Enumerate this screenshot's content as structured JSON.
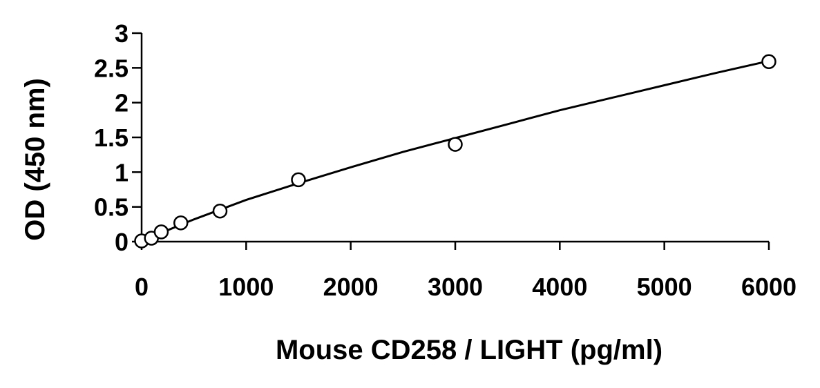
{
  "chart_data": {
    "type": "scatter",
    "xlabel": "Mouse CD258 / LIGHT (pg/ml)",
    "ylabel": "OD (450 nm)",
    "xlim": [
      0,
      6000
    ],
    "ylim": [
      0,
      3
    ],
    "x_ticks": [
      0,
      1000,
      2000,
      3000,
      4000,
      5000,
      6000
    ],
    "y_ticks": [
      0,
      0.5,
      1,
      1.5,
      2,
      2.5,
      3
    ],
    "x_tick_labels": [
      "0",
      "1000",
      "2000",
      "3000",
      "4000",
      "5000",
      "6000"
    ],
    "y_tick_labels": [
      "0",
      "0.5",
      "1",
      "1.5",
      "2",
      "2.5",
      "3"
    ],
    "grid": false,
    "legend": "none",
    "series": [
      {
        "marker": "open-circle",
        "x": [
          0,
          94,
          188,
          375,
          750,
          1500,
          3000,
          6000
        ],
        "y": [
          0.01,
          0.05,
          0.14,
          0.27,
          0.44,
          0.89,
          1.4,
          2.59
        ]
      }
    ],
    "fit_curve": {
      "x": [
        0,
        500,
        1000,
        1500,
        2000,
        2500,
        3000,
        3500,
        4000,
        4500,
        5000,
        5500,
        6000
      ],
      "y": [
        0.01,
        0.32,
        0.6,
        0.84,
        1.07,
        1.29,
        1.49,
        1.69,
        1.89,
        2.07,
        2.25,
        2.43,
        2.6
      ]
    },
    "colors": {
      "ink": "#000000",
      "background": "#ffffff"
    }
  }
}
